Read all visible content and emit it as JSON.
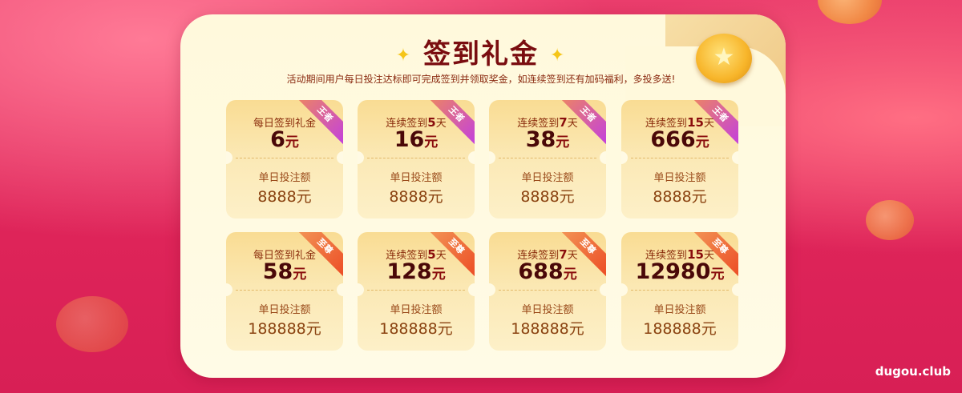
{
  "header": {
    "title": "签到礼金",
    "subtitle": "活动期间用户每日投注达标即可完成签到并领取奖金，如连续签到还有加码福利，多投多送!"
  },
  "bet_label": "单日投注额",
  "currency": "元",
  "colors": {
    "title": "#7a0d10",
    "badge_wangzhe": "#c23ee0",
    "badge_zhizun": "#ec4b24"
  },
  "rows": [
    {
      "badge": "王者",
      "cards": [
        {
          "prefix": "每日签到礼金",
          "days": "",
          "suffix": "",
          "amount": "6",
          "bet": "8888元"
        },
        {
          "prefix": "连续签到",
          "days": "5",
          "suffix": "天",
          "amount": "16",
          "bet": "8888元"
        },
        {
          "prefix": "连续签到",
          "days": "7",
          "suffix": "天",
          "amount": "38",
          "bet": "8888元"
        },
        {
          "prefix": "连续签到",
          "days": "15",
          "suffix": "天",
          "amount": "666",
          "bet": "8888元"
        }
      ]
    },
    {
      "badge": "至尊",
      "cards": [
        {
          "prefix": "每日签到礼金",
          "days": "",
          "suffix": "",
          "amount": "58",
          "bet": "188888元"
        },
        {
          "prefix": "连续签到",
          "days": "5",
          "suffix": "天",
          "amount": "128",
          "bet": "188888元"
        },
        {
          "prefix": "连续签到",
          "days": "7",
          "suffix": "天",
          "amount": "688",
          "bet": "188888元"
        },
        {
          "prefix": "连续签到",
          "days": "15",
          "suffix": "天",
          "amount": "12980",
          "bet": "188888元"
        }
      ]
    }
  ],
  "watermark": "dugou.club"
}
